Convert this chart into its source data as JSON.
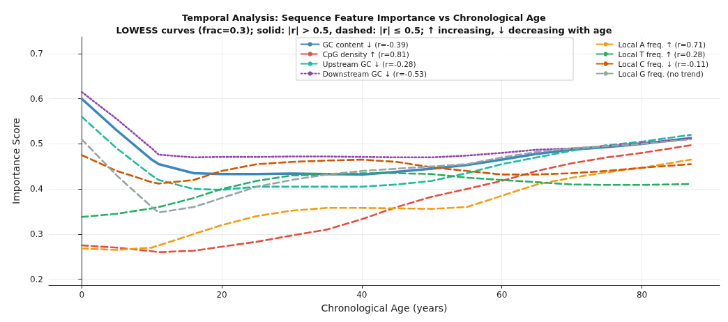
{
  "chart_data": {
    "type": "line",
    "title": "Temporal Analysis: Sequence Feature Importance vs Chronological Age",
    "subtitle": "LOWESS curves (frac=0.3); solid: |r| > 0.5, dashed: |r| ≤ 0.5; ↑ increasing, ↓ decreasing with age",
    "xlabel": "Chronological Age (years)",
    "ylabel": "Importance Score",
    "xlim": [
      -4.7,
      91.1
    ],
    "ylim": [
      0.187,
      0.737
    ],
    "xticks": [
      0,
      20,
      40,
      60,
      80
    ],
    "yticks": [
      0.2,
      0.3,
      0.4,
      0.5,
      0.6,
      0.7
    ],
    "grid": true,
    "legend": "top right",
    "marker": "none",
    "x": [
      0,
      5,
      10,
      11,
      16,
      20,
      25,
      30,
      35,
      40,
      45,
      50,
      55,
      60,
      65,
      70,
      75,
      80,
      87
    ],
    "series": [
      {
        "name": "GC content ↓ (r=-0.39)",
        "color": "#3a87c0",
        "line_style": "solid",
        "values": [
          0.6,
          0.53,
          0.465,
          0.455,
          0.435,
          0.433,
          0.433,
          0.434,
          0.433,
          0.432,
          0.438,
          0.445,
          0.453,
          0.465,
          0.478,
          0.487,
          0.493,
          0.5,
          0.513
        ]
      },
      {
        "name": "CpG density ↑ (r=0.81)",
        "color": "#e74c3c",
        "line_style": "dashed",
        "values": [
          0.275,
          0.27,
          0.262,
          0.26,
          0.263,
          0.272,
          0.283,
          0.297,
          0.31,
          0.333,
          0.36,
          0.383,
          0.4,
          0.418,
          0.44,
          0.457,
          0.47,
          0.48,
          0.497
        ]
      },
      {
        "name": "Upstream GC ↓ (r=-0.28)",
        "color": "#1abc9c",
        "line_style": "dashed",
        "values": [
          0.56,
          0.49,
          0.43,
          0.42,
          0.4,
          0.398,
          0.405,
          0.405,
          0.405,
          0.405,
          0.41,
          0.418,
          0.435,
          0.455,
          0.47,
          0.485,
          0.497,
          0.505,
          0.52
        ]
      },
      {
        "name": "Downstream GC ↓ (r=-0.53)",
        "color": "#8e44ad",
        "line_style": "dotted",
        "values": [
          0.615,
          0.555,
          0.49,
          0.476,
          0.47,
          0.471,
          0.471,
          0.472,
          0.472,
          0.471,
          0.47,
          0.47,
          0.474,
          0.48,
          0.487,
          0.49,
          0.495,
          0.502,
          0.512
        ]
      },
      {
        "name": "Local A freq. ↑ (r=0.71)",
        "color": "#f39c12",
        "line_style": "dashed",
        "values": [
          0.268,
          0.265,
          0.27,
          0.275,
          0.3,
          0.32,
          0.34,
          0.352,
          0.358,
          0.358,
          0.357,
          0.356,
          0.36,
          0.385,
          0.41,
          0.425,
          0.437,
          0.447,
          0.465
        ]
      },
      {
        "name": "Local T freq. ↑ (r=0.28)",
        "color": "#27ae60",
        "line_style": "dashed",
        "values": [
          0.338,
          0.345,
          0.357,
          0.36,
          0.38,
          0.4,
          0.418,
          0.43,
          0.432,
          0.435,
          0.435,
          0.433,
          0.425,
          0.42,
          0.415,
          0.41,
          0.409,
          0.409,
          0.411
        ]
      },
      {
        "name": "Local C freq. ↓ (r=-0.11)",
        "color": "#d35400",
        "line_style": "dashed",
        "values": [
          0.475,
          0.44,
          0.415,
          0.412,
          0.42,
          0.44,
          0.455,
          0.46,
          0.463,
          0.465,
          0.46,
          0.448,
          0.44,
          0.432,
          0.432,
          0.435,
          0.44,
          0.447,
          0.455
        ]
      },
      {
        "name": "Local G freq. (no trend)",
        "color": "#95a5a6",
        "line_style": "dashed",
        "values": [
          0.51,
          0.43,
          0.36,
          0.348,
          0.36,
          0.38,
          0.405,
          0.42,
          0.432,
          0.44,
          0.445,
          0.45,
          0.455,
          0.47,
          0.482,
          0.49,
          0.495,
          0.5,
          0.51
        ]
      }
    ]
  }
}
